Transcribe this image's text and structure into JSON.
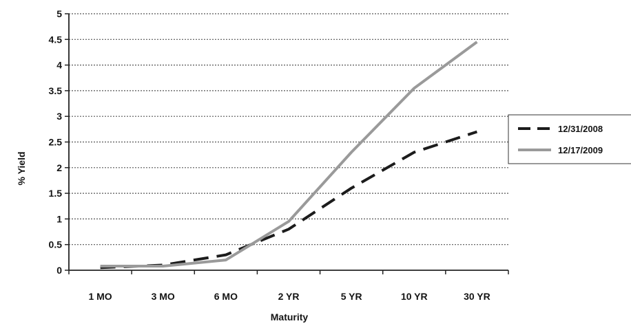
{
  "chart_data": {
    "type": "line",
    "title": "",
    "xlabel": "Maturity",
    "ylabel": "% Yield",
    "categories": [
      "1 MO",
      "3 MO",
      "6 MO",
      "2 YR",
      "5 YR",
      "10 YR",
      "30 YR"
    ],
    "ylim": [
      0,
      5
    ],
    "yticks": [
      "0",
      "0.5",
      "1",
      "1.5",
      "2",
      "2.5",
      "3",
      "3.5",
      "4",
      "4.5",
      "5"
    ],
    "grid": "horizontal dotted",
    "legend_position": "right",
    "series": [
      {
        "name": "12/31/2008",
        "style": "dashed",
        "color": "#1c1c1c",
        "values": [
          0.05,
          0.1,
          0.3,
          0.8,
          1.6,
          2.3,
          2.7
        ]
      },
      {
        "name": "12/17/2009",
        "style": "solid",
        "color": "#9a9a9a",
        "values": [
          0.08,
          0.08,
          0.2,
          0.95,
          2.3,
          3.55,
          4.45
        ]
      }
    ]
  }
}
